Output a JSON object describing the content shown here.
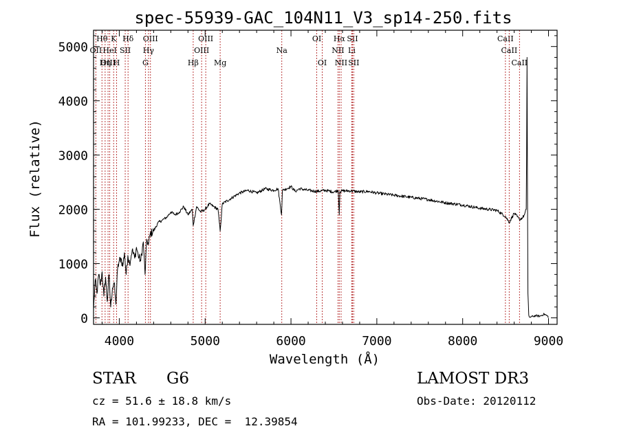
{
  "chart_data": {
    "type": "line",
    "title": "spec-55939-GAC_104N11_V3_sp14-250.fits",
    "xlabel": "Wavelength (Å)",
    "ylabel": "Flux (relative)",
    "xlim": [
      3700,
      9100
    ],
    "ylim": [
      -120,
      5300
    ],
    "x_ticks": [
      4000,
      5000,
      6000,
      7000,
      8000,
      9000
    ],
    "y_ticks": [
      0,
      1000,
      2000,
      3000,
      4000,
      5000
    ],
    "grid": false,
    "series": [
      {
        "name": "flux",
        "x": [
          3700,
          3720,
          3740,
          3760,
          3780,
          3800,
          3820,
          3840,
          3860,
          3880,
          3900,
          3920,
          3940,
          3960,
          3980,
          4000,
          4020,
          4040,
          4060,
          4080,
          4100,
          4120,
          4150,
          4180,
          4200,
          4220,
          4250,
          4280,
          4300,
          4320,
          4340,
          4360,
          4400,
          4450,
          4500,
          4550,
          4600,
          4650,
          4700,
          4750,
          4800,
          4850,
          4861,
          4900,
          4950,
          5000,
          5050,
          5100,
          5150,
          5175,
          5200,
          5300,
          5400,
          5500,
          5600,
          5700,
          5800,
          5850,
          5890,
          5900,
          5950,
          6000,
          6050,
          6100,
          6200,
          6300,
          6400,
          6500,
          6550,
          6563,
          6570,
          6600,
          6700,
          6800,
          6900,
          7000,
          7200,
          7400,
          7600,
          7800,
          8000,
          8200,
          8400,
          8498,
          8542,
          8600,
          8662,
          8700,
          8720,
          8740,
          8745,
          8750,
          8755,
          8760,
          8770,
          8780,
          8800,
          8850,
          8900,
          8950,
          9000
        ],
        "y": [
          150,
          700,
          450,
          800,
          600,
          850,
          400,
          750,
          300,
          800,
          200,
          550,
          650,
          250,
          900,
          1050,
          1100,
          950,
          1200,
          800,
          1150,
          1000,
          1250,
          1100,
          1300,
          1150,
          1050,
          1400,
          800,
          1450,
          1350,
          1550,
          1600,
          1750,
          1800,
          1850,
          1950,
          1900,
          1950,
          2050,
          1900,
          2000,
          1700,
          2050,
          1950,
          2000,
          2100,
          2050,
          2000,
          1600,
          2100,
          2200,
          2300,
          2350,
          2300,
          2380,
          2350,
          2380,
          1900,
          2350,
          2380,
          2420,
          2330,
          2380,
          2350,
          2330,
          2350,
          2320,
          2350,
          1900,
          2330,
          2340,
          2340,
          2320,
          2330,
          2300,
          2260,
          2220,
          2180,
          2120,
          2080,
          2020,
          1980,
          1870,
          1760,
          1930,
          1810,
          1850,
          1900,
          2000,
          3000,
          4800,
          2500,
          450,
          50,
          10,
          20,
          40,
          30,
          70,
          20
        ]
      }
    ],
    "lines": [
      {
        "name": "Hθ",
        "wave": 3798,
        "row": 1
      },
      {
        "name": "OII",
        "wave": 3727,
        "row": 2
      },
      {
        "name": "OIII",
        "wave": 3869,
        "row": 3
      },
      {
        "name": "HeI",
        "wave": 3889,
        "row": 2
      },
      {
        "name": "K",
        "wave": 3934,
        "row": 1
      },
      {
        "name": "Hη",
        "wave": 3835,
        "row": 3
      },
      {
        "name": "SII",
        "wave": 4069,
        "row": 2
      },
      {
        "name": "H",
        "wave": 3969,
        "row": 3
      },
      {
        "name": "Hδ",
        "wave": 4102,
        "row": 1
      },
      {
        "name": "OIII",
        "wave": 4363,
        "row": 1
      },
      {
        "name": "Hγ",
        "wave": 4340,
        "row": 2
      },
      {
        "name": "G",
        "wave": 4304,
        "row": 3
      },
      {
        "name": "Hβ",
        "wave": 4861,
        "row": 3
      },
      {
        "name": "OIII",
        "wave": 5007,
        "row": 1
      },
      {
        "name": "OIII",
        "wave": 4959,
        "row": 2
      },
      {
        "name": "Mg",
        "wave": 5175,
        "row": 3
      },
      {
        "name": "Na",
        "wave": 5893,
        "row": 2
      },
      {
        "name": "OI",
        "wave": 6300,
        "row": 1
      },
      {
        "name": "OI",
        "wave": 6364,
        "row": 3
      },
      {
        "name": "Hα",
        "wave": 6563,
        "row": 1
      },
      {
        "name": "SII",
        "wave": 6716,
        "row": 1
      },
      {
        "name": "NII",
        "wave": 6548,
        "row": 2
      },
      {
        "name": "Li",
        "wave": 6708,
        "row": 2
      },
      {
        "name": "NII",
        "wave": 6584,
        "row": 3
      },
      {
        "name": "SII",
        "wave": 6731,
        "row": 3
      },
      {
        "name": "CaII",
        "wave": 8498,
        "row": 1
      },
      {
        "name": "CaII",
        "wave": 8542,
        "row": 2
      },
      {
        "name": "CaII",
        "wave": 8662,
        "row": 3
      }
    ]
  },
  "info": {
    "object_class": "STAR",
    "subclass": "G6",
    "survey": "LAMOST DR3",
    "cz": "cz = 51.6 ± 18.8 km/s",
    "obs_date": "Obs-Date: 20120112",
    "coords": "RA = 101.99233, DEC =  12.39854"
  },
  "colors": {
    "axis": "#000000",
    "line_marker": "#b22222",
    "spectrum": "#000000"
  }
}
